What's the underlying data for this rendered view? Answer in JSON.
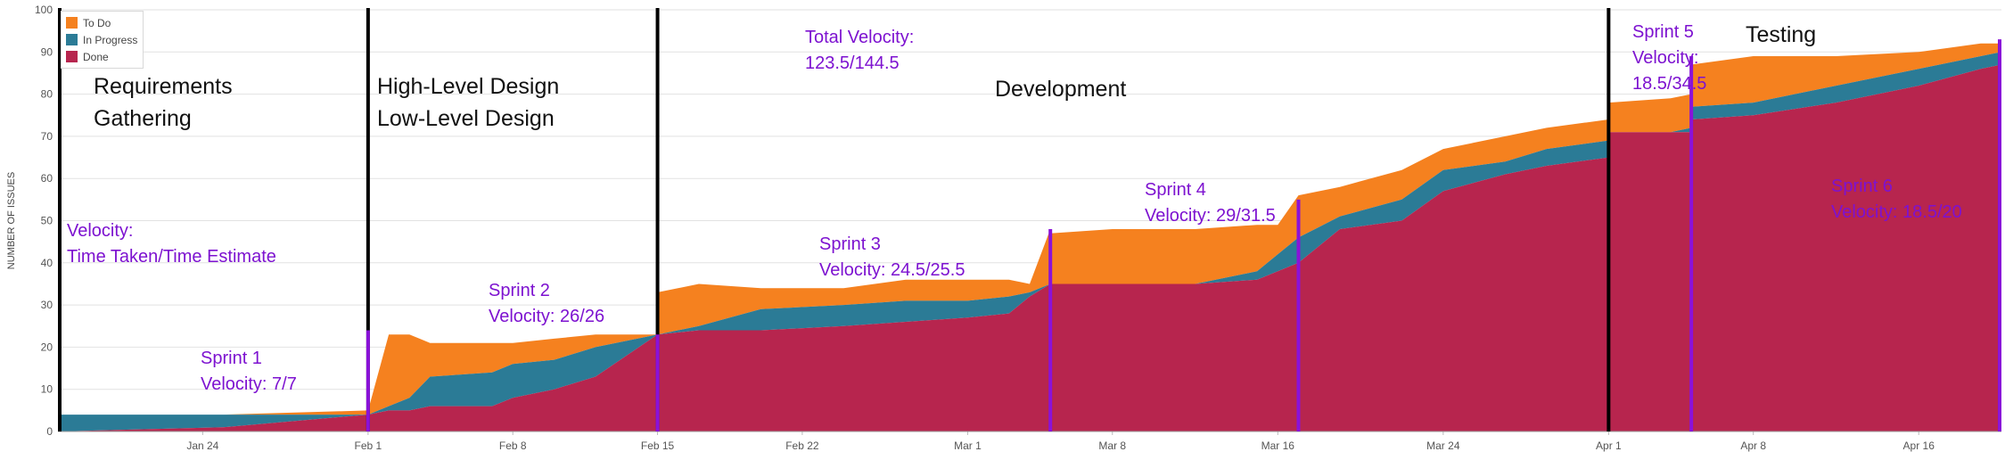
{
  "chart_data": {
    "type": "area",
    "ylabel": "NUMBER OF ISSUES",
    "ylim": [
      0,
      100
    ],
    "yticks": [
      0,
      10,
      20,
      30,
      40,
      50,
      60,
      70,
      80,
      90,
      100
    ],
    "xlim": [
      "2024-01-17",
      "2024-04-20"
    ],
    "xticks": [
      {
        "date": "2024-01-24",
        "label": "Jan 24"
      },
      {
        "date": "2024-02-01",
        "label": "Feb 1"
      },
      {
        "date": "2024-02-08",
        "label": "Feb 8"
      },
      {
        "date": "2024-02-15",
        "label": "Feb 15"
      },
      {
        "date": "2024-02-22",
        "label": "Feb 22"
      },
      {
        "date": "2024-03-01",
        "label": "Mar 1"
      },
      {
        "date": "2024-03-08",
        "label": "Mar 8"
      },
      {
        "date": "2024-03-16",
        "label": "Mar 16"
      },
      {
        "date": "2024-03-24",
        "label": "Mar 24"
      },
      {
        "date": "2024-04-01",
        "label": "Apr 1"
      },
      {
        "date": "2024-04-08",
        "label": "Apr 8"
      },
      {
        "date": "2024-04-16",
        "label": "Apr 16"
      }
    ],
    "grid": true,
    "legend_position": "top-left",
    "colors": {
      "done": "#b7254e",
      "in_progress": "#2b7b96",
      "to_do": "#f5811f",
      "phase_line": "#000000",
      "sprint_line": "#8a12d9",
      "annotation": "#7d12d0",
      "grid": "#e2e2e2",
      "axis_text": "#555555"
    },
    "series": [
      {
        "name": "To Do",
        "key": "to_do",
        "color": "#f5811f"
      },
      {
        "name": "In Progress",
        "key": "in_progress",
        "color": "#2b7b96"
      },
      {
        "name": "Done",
        "key": "done",
        "color": "#b7254e"
      }
    ],
    "x": [
      "2024-01-17",
      "2024-01-25",
      "2024-02-01",
      "2024-02-01",
      "2024-02-02",
      "2024-02-03",
      "2024-02-04",
      "2024-02-07",
      "2024-02-08",
      "2024-02-10",
      "2024-02-12",
      "2024-02-15",
      "2024-02-15",
      "2024-02-17",
      "2024-02-20",
      "2024-02-24",
      "2024-02-27",
      "2024-03-01",
      "2024-03-03",
      "2024-03-04",
      "2024-03-05",
      "2024-03-05",
      "2024-03-08",
      "2024-03-12",
      "2024-03-15",
      "2024-03-16",
      "2024-03-17",
      "2024-03-19",
      "2024-03-22",
      "2024-03-24",
      "2024-03-27",
      "2024-03-29",
      "2024-04-01",
      "2024-04-01",
      "2024-04-04",
      "2024-04-05",
      "2024-04-05",
      "2024-04-08",
      "2024-04-12",
      "2024-04-16",
      "2024-04-19",
      "2024-04-20"
    ],
    "done": [
      0,
      1,
      4,
      4,
      5,
      5,
      6,
      6,
      8,
      10,
      13,
      23,
      23,
      24,
      24,
      25,
      26,
      27,
      28,
      32,
      35,
      35,
      35,
      35,
      36,
      38,
      40,
      48,
      50,
      57,
      61,
      63,
      65,
      71,
      71,
      71,
      74,
      75,
      78,
      82,
      86,
      87
    ],
    "in_progress": [
      4,
      4,
      4,
      4,
      6,
      8,
      13,
      14,
      16,
      17,
      20,
      23,
      23,
      25,
      29,
      30,
      31,
      31,
      32,
      33,
      35,
      35,
      35,
      35,
      38,
      42,
      46,
      51,
      55,
      62,
      64,
      67,
      69,
      71,
      71,
      72,
      77,
      78,
      82,
      86,
      89,
      90
    ],
    "to_do": [
      4,
      4,
      5,
      5,
      23,
      23,
      21,
      21,
      21,
      22,
      23,
      23,
      33,
      35,
      34,
      34,
      36,
      36,
      36,
      35,
      48,
      47,
      48,
      48,
      49,
      49,
      56,
      58,
      62,
      67,
      70,
      72,
      74,
      78,
      79,
      80,
      87,
      89,
      89,
      90,
      92,
      92
    ],
    "phases": [
      {
        "date": "2024-01-17",
        "lines": [
          "Requirements",
          "Gathering"
        ]
      },
      {
        "date": "2024-02-01",
        "lines": [
          "High-Level Design",
          "Low-Level Design"
        ]
      },
      {
        "date": "2024-02-15",
        "lines": [
          "Development"
        ]
      },
      {
        "date": "2024-04-01",
        "lines": []
      },
      {
        "date": "2024-04-08",
        "lines": [
          "Testing"
        ]
      }
    ],
    "sprint_ends": [
      "2024-02-01",
      "2024-02-15",
      "2024-03-05",
      "2024-03-17",
      "2024-04-05",
      "2024-04-20"
    ],
    "annotations": [
      {
        "text": [
          "Velocity:",
          "Time Taken/Time Estimate"
        ]
      },
      {
        "text": [
          "Sprint 1",
          "Velocity: 7/7"
        ]
      },
      {
        "text": [
          "Sprint 2",
          "Velocity: 26/26"
        ]
      },
      {
        "text": [
          "Total Velocity:",
          "123.5/144.5"
        ]
      },
      {
        "text": [
          "Sprint 3",
          "Velocity: 24.5/25.5"
        ]
      },
      {
        "text": [
          "Sprint 4",
          "Velocity: 29/31.5"
        ]
      },
      {
        "text": [
          "Sprint 5",
          "Velocity:",
          "18.5/34.5"
        ]
      },
      {
        "text": [
          "Sprint 6",
          "Velocity: 18.5/20"
        ]
      }
    ]
  }
}
